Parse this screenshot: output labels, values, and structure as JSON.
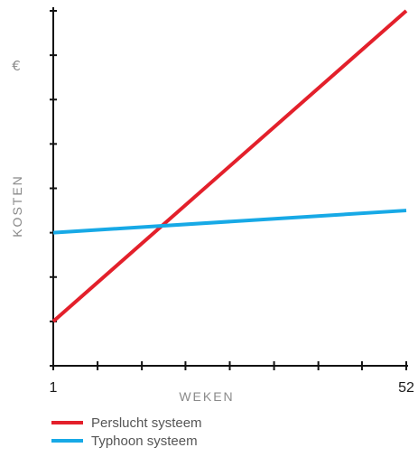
{
  "chart_data": {
    "type": "line",
    "title": "",
    "xlabel": "WEKEN",
    "ylabel": "KOSTEN",
    "y_unit": "€",
    "x_tick_labels": [
      "1",
      "52"
    ],
    "x_range": [
      1,
      52
    ],
    "y_range": [
      0,
      8
    ],
    "y_ticks": [
      0,
      1,
      2,
      3,
      4,
      5,
      6,
      7,
      8
    ],
    "x_minor_ticks": [
      1,
      7.4,
      13.8,
      20.1,
      26.5,
      32.9,
      39.3,
      45.6,
      52
    ],
    "grid": false,
    "legend_position": "bottom-left",
    "series": [
      {
        "name": "Perslucht systeem",
        "color": "#e3202b",
        "x": [
          1,
          52
        ],
        "y": [
          1,
          8
        ]
      },
      {
        "name": "Typhoon systeem",
        "color": "#17a9e6",
        "x": [
          1,
          52
        ],
        "y": [
          3,
          3.5
        ]
      }
    ]
  }
}
